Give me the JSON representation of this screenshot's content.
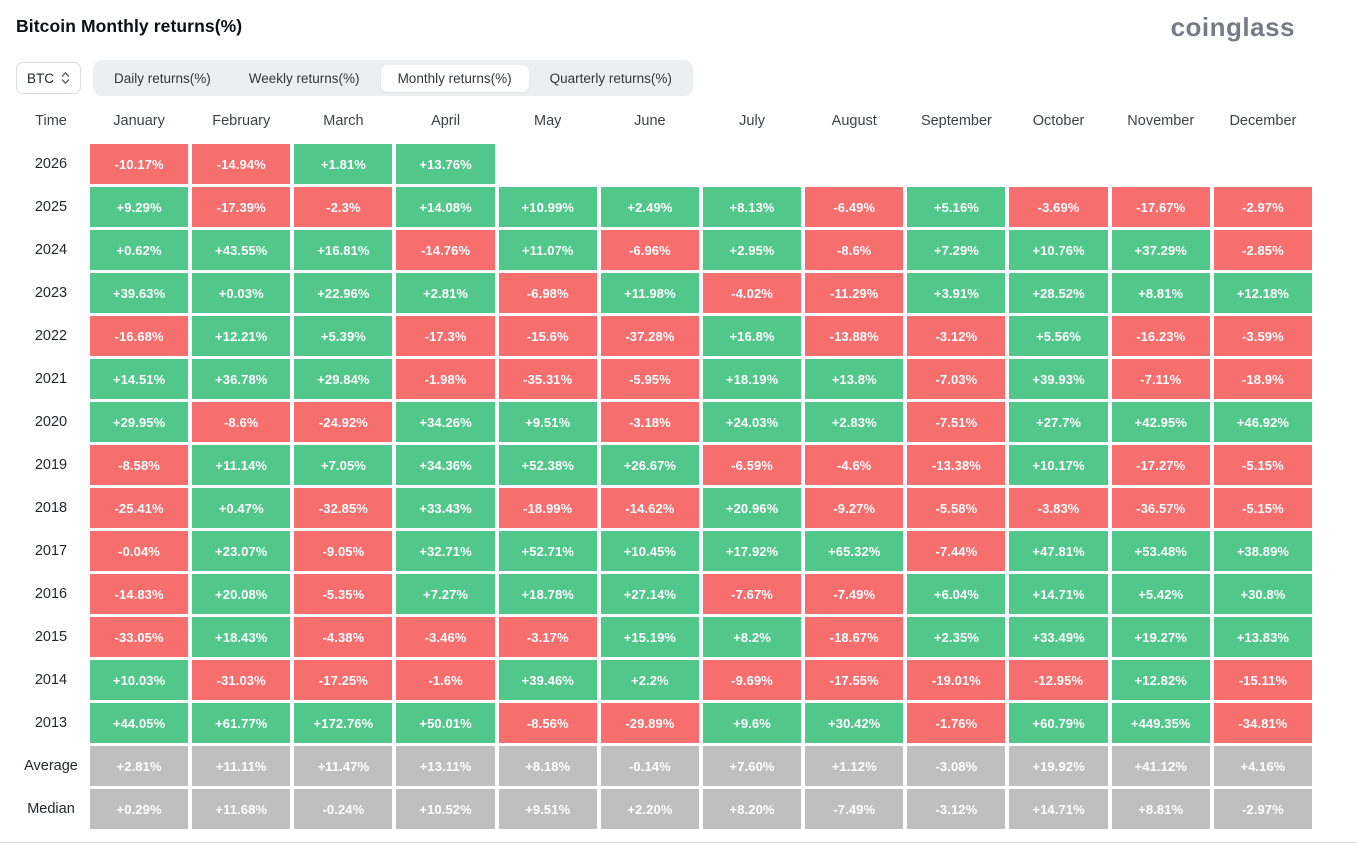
{
  "page": {
    "title": "Bitcoin Monthly returns(%)",
    "logo": "coinglass"
  },
  "controls": {
    "coin_selector": {
      "value": "BTC"
    },
    "tabs": [
      {
        "label": "Daily returns(%)",
        "active": false
      },
      {
        "label": "Weekly returns(%)",
        "active": false
      },
      {
        "label": "Monthly returns(%)",
        "active": true
      },
      {
        "label": "Quarterly returns(%)",
        "active": false
      }
    ]
  },
  "colors": {
    "positive": "#52c78c",
    "negative": "#f66e6e",
    "neutral": "#bfbfbf"
  },
  "chart_data": {
    "type": "heatmap",
    "title": "Bitcoin Monthly returns(%)",
    "unit": "percent",
    "columns": [
      "Time",
      "January",
      "February",
      "March",
      "April",
      "May",
      "June",
      "July",
      "August",
      "September",
      "October",
      "November",
      "December"
    ],
    "rows": [
      {
        "label": "2026",
        "kind": "year",
        "values": [
          "-10.17%",
          "-14.94%",
          "+1.81%",
          "+13.76%",
          null,
          null,
          null,
          null,
          null,
          null,
          null,
          null
        ]
      },
      {
        "label": "2025",
        "kind": "year",
        "values": [
          "+9.29%",
          "-17.39%",
          "-2.3%",
          "+14.08%",
          "+10.99%",
          "+2.49%",
          "+8.13%",
          "-6.49%",
          "+5.16%",
          "-3.69%",
          "-17.67%",
          "-2.97%"
        ]
      },
      {
        "label": "2024",
        "kind": "year",
        "values": [
          "+0.62%",
          "+43.55%",
          "+16.81%",
          "-14.76%",
          "+11.07%",
          "-6.96%",
          "+2.95%",
          "-8.6%",
          "+7.29%",
          "+10.76%",
          "+37.29%",
          "-2.85%"
        ]
      },
      {
        "label": "2023",
        "kind": "year",
        "values": [
          "+39.63%",
          "+0.03%",
          "+22.96%",
          "+2.81%",
          "-6.98%",
          "+11.98%",
          "-4.02%",
          "-11.29%",
          "+3.91%",
          "+28.52%",
          "+8.81%",
          "+12.18%"
        ]
      },
      {
        "label": "2022",
        "kind": "year",
        "values": [
          "-16.68%",
          "+12.21%",
          "+5.39%",
          "-17.3%",
          "-15.6%",
          "-37.28%",
          "+16.8%",
          "-13.88%",
          "-3.12%",
          "+5.56%",
          "-16.23%",
          "-3.59%"
        ]
      },
      {
        "label": "2021",
        "kind": "year",
        "values": [
          "+14.51%",
          "+36.78%",
          "+29.84%",
          "-1.98%",
          "-35.31%",
          "-5.95%",
          "+18.19%",
          "+13.8%",
          "-7.03%",
          "+39.93%",
          "-7.11%",
          "-18.9%"
        ]
      },
      {
        "label": "2020",
        "kind": "year",
        "values": [
          "+29.95%",
          "-8.6%",
          "-24.92%",
          "+34.26%",
          "+9.51%",
          "-3.18%",
          "+24.03%",
          "+2.83%",
          "-7.51%",
          "+27.7%",
          "+42.95%",
          "+46.92%"
        ]
      },
      {
        "label": "2019",
        "kind": "year",
        "values": [
          "-8.58%",
          "+11.14%",
          "+7.05%",
          "+34.36%",
          "+52.38%",
          "+26.67%",
          "-6.59%",
          "-4.6%",
          "-13.38%",
          "+10.17%",
          "-17.27%",
          "-5.15%"
        ]
      },
      {
        "label": "2018",
        "kind": "year",
        "values": [
          "-25.41%",
          "+0.47%",
          "-32.85%",
          "+33.43%",
          "-18.99%",
          "-14.62%",
          "+20.96%",
          "-9.27%",
          "-5.58%",
          "-3.83%",
          "-36.57%",
          "-5.15%"
        ]
      },
      {
        "label": "2017",
        "kind": "year",
        "values": [
          "-0.04%",
          "+23.07%",
          "-9.05%",
          "+32.71%",
          "+52.71%",
          "+10.45%",
          "+17.92%",
          "+65.32%",
          "-7.44%",
          "+47.81%",
          "+53.48%",
          "+38.89%"
        ]
      },
      {
        "label": "2016",
        "kind": "year",
        "values": [
          "-14.83%",
          "+20.08%",
          "-5.35%",
          "+7.27%",
          "+18.78%",
          "+27.14%",
          "-7.67%",
          "-7.49%",
          "+6.04%",
          "+14.71%",
          "+5.42%",
          "+30.8%"
        ]
      },
      {
        "label": "2015",
        "kind": "year",
        "values": [
          "-33.05%",
          "+18.43%",
          "-4.38%",
          "-3.46%",
          "-3.17%",
          "+15.19%",
          "+8.2%",
          "-18.67%",
          "+2.35%",
          "+33.49%",
          "+19.27%",
          "+13.83%"
        ]
      },
      {
        "label": "2014",
        "kind": "year",
        "values": [
          "+10.03%",
          "-31.03%",
          "-17.25%",
          "-1.6%",
          "+39.46%",
          "+2.2%",
          "-9.69%",
          "-17.55%",
          "-19.01%",
          "-12.95%",
          "+12.82%",
          "-15.11%"
        ]
      },
      {
        "label": "2013",
        "kind": "year",
        "values": [
          "+44.05%",
          "+61.77%",
          "+172.76%",
          "+50.01%",
          "-8.56%",
          "-29.89%",
          "+9.6%",
          "+30.42%",
          "-1.76%",
          "+60.79%",
          "+449.35%",
          "-34.81%"
        ]
      },
      {
        "label": "Average",
        "kind": "summary",
        "values": [
          "+2.81%",
          "+11.11%",
          "+11.47%",
          "+13.11%",
          "+8.18%",
          "-0.14%",
          "+7.60%",
          "+1.12%",
          "-3.08%",
          "+19.92%",
          "+41.12%",
          "+4.16%"
        ]
      },
      {
        "label": "Median",
        "kind": "summary",
        "values": [
          "+0.29%",
          "+11.68%",
          "-0.24%",
          "+10.52%",
          "+9.51%",
          "+2.20%",
          "+8.20%",
          "-7.49%",
          "-3.12%",
          "+14.71%",
          "+8.81%",
          "-2.97%"
        ]
      }
    ]
  }
}
